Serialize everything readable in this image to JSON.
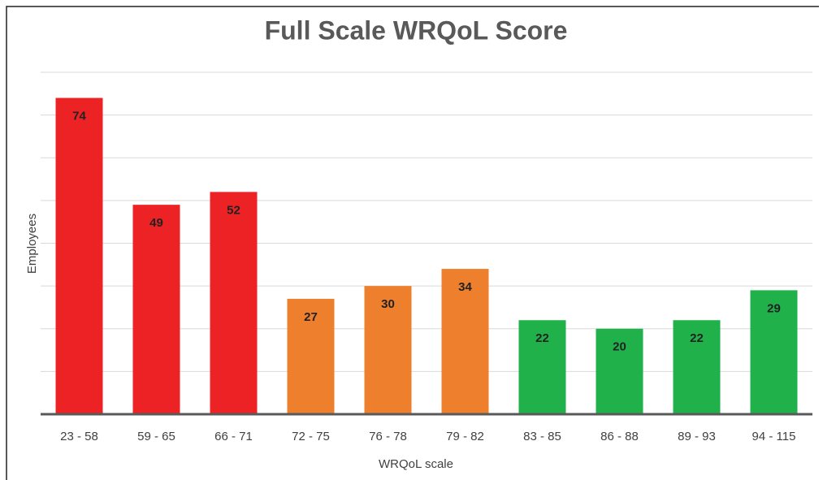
{
  "chart_data": {
    "type": "bar",
    "title": "Full Scale WRQoL Score",
    "x_label": "WRQoL scale",
    "y_label": "Employees",
    "categories": [
      "23 - 58",
      "59 - 65",
      "66 - 71",
      "72 - 75",
      "76 - 78",
      "79 - 82",
      "83 - 85",
      "86 - 88",
      "89 - 93",
      "94 - 115"
    ],
    "values": [
      74,
      49,
      52,
      27,
      30,
      34,
      22,
      20,
      22,
      29
    ],
    "colors": [
      "#ed2224",
      "#ed2224",
      "#ed2224",
      "#ee7f2d",
      "#ee7f2d",
      "#ee7f2d",
      "#21b14b",
      "#21b14b",
      "#21b14b",
      "#21b14b"
    ],
    "ylim": [
      0,
      80
    ],
    "yticks": [
      0,
      10,
      20,
      30,
      40,
      50,
      60,
      70,
      80
    ],
    "grid": true
  }
}
